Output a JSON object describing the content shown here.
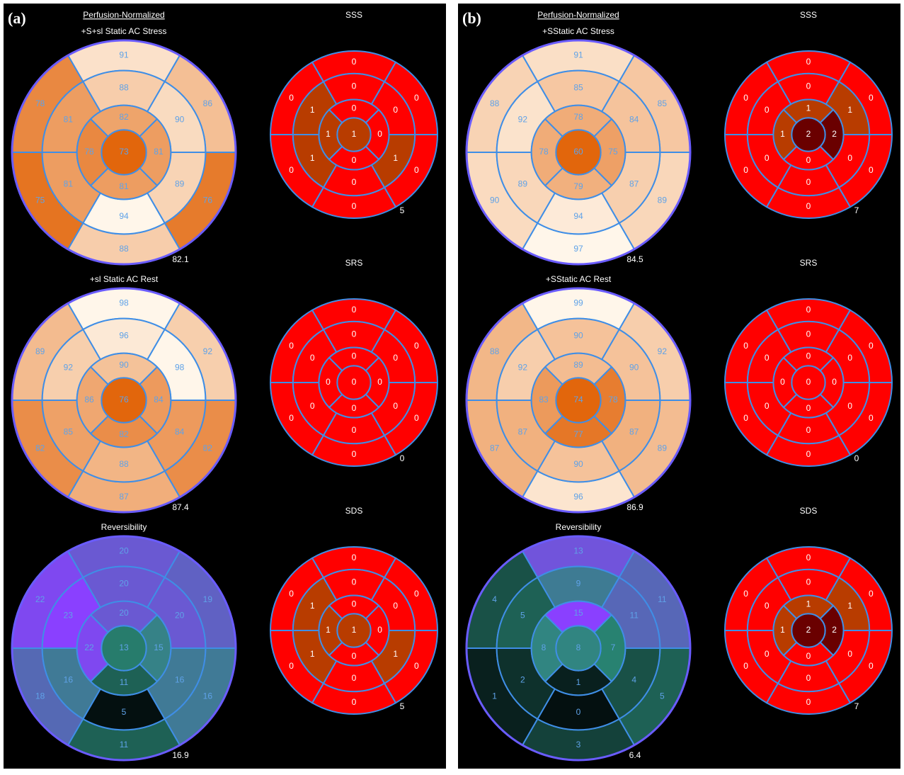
{
  "panels": [
    {
      "label": "(a)",
      "header": "Perfusion-Normalized",
      "rows": [
        {
          "polar": {
            "title": "+S+sl Static AC Stress",
            "colormap": [
              "#e2660c",
              "#fff6ea"
            ],
            "outer": [
              91,
              86,
              76,
              88,
              75,
              78
            ],
            "mid": [
              88,
              90,
              89,
              94,
              81,
              81
            ],
            "inner": [
              82,
              81,
              81,
              78
            ],
            "apex": 73,
            "total": 82.1
          },
          "score": {
            "title": "SSS",
            "outer": [
              0,
              0,
              0,
              0,
              0,
              0
            ],
            "mid": [
              0,
              0,
              1,
              0,
              1,
              1
            ],
            "inner": [
              0,
              0,
              0,
              1
            ],
            "apex": 1,
            "total": 5
          }
        },
        {
          "polar": {
            "title": "+sl Static AC Rest",
            "colormap": [
              "#e2660c",
              "#fff6ea"
            ],
            "outer": [
              98,
              92,
              82,
              87,
              82,
              89
            ],
            "mid": [
              96,
              98,
              84,
              88,
              85,
              92
            ],
            "inner": [
              90,
              84,
              82,
              86
            ],
            "apex": 76,
            "total": 87.4
          },
          "score": {
            "title": "SRS",
            "outer": [
              0,
              0,
              0,
              0,
              0,
              0
            ],
            "mid": [
              0,
              0,
              0,
              0,
              0,
              0
            ],
            "inner": [
              0,
              0,
              0,
              0
            ],
            "apex": 0,
            "total": 0
          }
        },
        {
          "polar": {
            "title": "Reversibility",
            "colormap": [
              "#041010",
              "#2b8a78",
              "#8a40ff"
            ],
            "outer": [
              20,
              19,
              16,
              11,
              18,
              22
            ],
            "mid": [
              20,
              20,
              16,
              5,
              16,
              23
            ],
            "inner": [
              20,
              15,
              11,
              22
            ],
            "apex": 13,
            "total": 16.9
          },
          "score": {
            "title": "SDS",
            "outer": [
              0,
              0,
              0,
              0,
              0,
              0
            ],
            "mid": [
              0,
              0,
              1,
              0,
              1,
              1
            ],
            "inner": [
              0,
              0,
              0,
              1
            ],
            "apex": 1,
            "total": 5
          }
        }
      ]
    },
    {
      "label": "(b)",
      "header": "Perfusion-Normalized",
      "rows": [
        {
          "polar": {
            "title": "+SStatic AC Stress",
            "colormap": [
              "#e2660c",
              "#fff6ea"
            ],
            "outer": [
              91,
              85,
              89,
              97,
              90,
              88
            ],
            "mid": [
              85,
              84,
              87,
              94,
              89,
              92
            ],
            "inner": [
              78,
              75,
              79,
              78
            ],
            "apex": 60,
            "total": 84.5
          },
          "score": {
            "title": "SSS",
            "outer": [
              0,
              0,
              0,
              0,
              0,
              0
            ],
            "mid": [
              0,
              1,
              0,
              0,
              0,
              0
            ],
            "inner": [
              1,
              2,
              0,
              1
            ],
            "apex": 2,
            "total": 7
          }
        },
        {
          "polar": {
            "title": "+SStatic AC Rest",
            "colormap": [
              "#e2660c",
              "#fff6ea"
            ],
            "outer": [
              99,
              92,
              89,
              96,
              87,
              88
            ],
            "mid": [
              90,
              90,
              87,
              90,
              87,
              92
            ],
            "inner": [
              89,
              78,
              77,
              83
            ],
            "apex": 74,
            "total": 86.9
          },
          "score": {
            "title": "SRS",
            "outer": [
              0,
              0,
              0,
              0,
              0,
              0
            ],
            "mid": [
              0,
              0,
              0,
              0,
              0,
              0
            ],
            "inner": [
              0,
              0,
              0,
              0
            ],
            "apex": 0,
            "total": 0
          }
        },
        {
          "polar": {
            "title": "Reversibility",
            "colormap": [
              "#041010",
              "#2b8a78",
              "#8a40ff"
            ],
            "outer": [
              13,
              11,
              5,
              3,
              1,
              4
            ],
            "mid": [
              9,
              11,
              4,
              0,
              2,
              5
            ],
            "inner": [
              15,
              7,
              1,
              8
            ],
            "apex": 8,
            "total": 6.4
          },
          "score": {
            "title": "SDS",
            "outer": [
              0,
              0,
              0,
              0,
              0,
              0
            ],
            "mid": [
              0,
              1,
              0,
              0,
              0,
              0
            ],
            "inner": [
              1,
              2,
              0,
              1
            ],
            "apex": 2,
            "total": 7
          }
        }
      ]
    }
  ],
  "score_colors": [
    "#ff0000",
    "#b83c00",
    "#6a0000"
  ]
}
